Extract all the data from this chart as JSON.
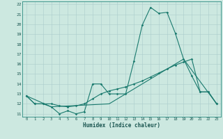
{
  "xlabel": "Humidex (Indice chaleur)",
  "bg_color": "#cce8e0",
  "line_color": "#1a7a6e",
  "xlim": [
    -0.5,
    23.5
  ],
  "ylim": [
    10.7,
    22.3
  ],
  "yticks": [
    11,
    12,
    13,
    14,
    15,
    16,
    17,
    18,
    19,
    20,
    21,
    22
  ],
  "xticks": [
    0,
    1,
    2,
    3,
    4,
    5,
    6,
    7,
    8,
    9,
    10,
    11,
    12,
    13,
    14,
    15,
    16,
    17,
    18,
    19,
    20,
    21,
    22,
    23
  ],
  "line1_x": [
    0,
    1,
    2,
    3,
    4,
    5,
    6,
    7,
    8,
    9,
    10,
    11,
    12,
    13,
    14,
    15,
    16,
    17,
    18,
    19,
    20,
    21,
    22,
    23
  ],
  "line1_y": [
    12.8,
    12.0,
    12.0,
    11.7,
    11.0,
    11.3,
    11.0,
    11.2,
    14.0,
    14.0,
    13.0,
    13.0,
    13.0,
    16.3,
    19.9,
    21.7,
    21.1,
    21.2,
    19.1,
    16.5,
    14.8,
    13.2,
    13.2,
    12.0
  ],
  "line2_x": [
    0,
    1,
    2,
    3,
    4,
    5,
    6,
    7,
    8,
    9,
    10,
    11,
    12,
    13,
    14,
    15,
    16,
    17,
    18,
    19,
    20,
    21,
    22,
    23
  ],
  "line2_y": [
    12.8,
    12.0,
    12.0,
    12.0,
    11.8,
    11.7,
    11.8,
    12.0,
    12.5,
    13.0,
    13.3,
    13.5,
    13.7,
    14.0,
    14.3,
    14.7,
    15.1,
    15.5,
    15.9,
    16.2,
    16.5,
    13.2,
    13.2,
    12.0
  ],
  "line3_x": [
    0,
    3,
    10,
    19,
    23
  ],
  "line3_y": [
    12.8,
    11.7,
    12.0,
    16.5,
    12.0
  ]
}
